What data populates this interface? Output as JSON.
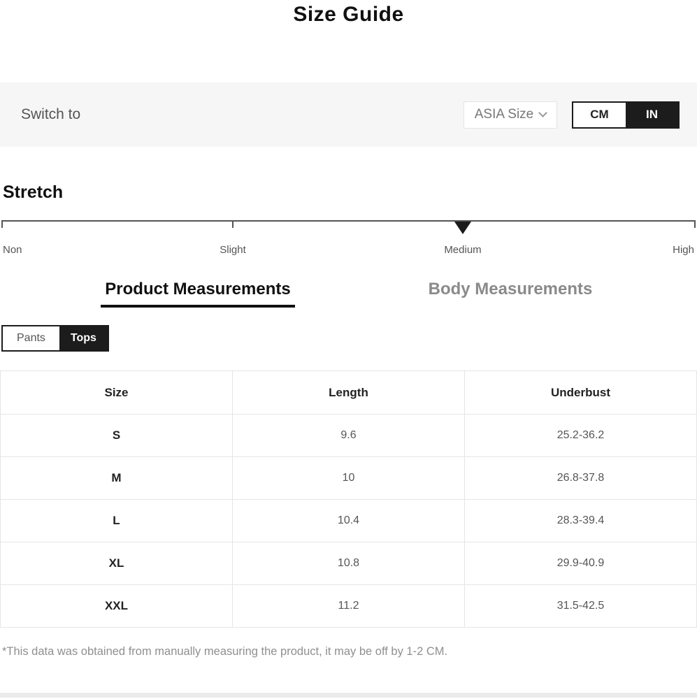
{
  "page": {
    "title": "Size Guide",
    "footnote": "*This data was obtained from manually measuring the product, it may be off by 1-2 CM."
  },
  "switch_bar": {
    "label": "Switch to",
    "region_select": {
      "value": "ASIA Size",
      "chevron_icon": "chevron-down"
    },
    "unit_toggle": {
      "options": [
        {
          "label": "CM",
          "selected": false
        },
        {
          "label": "IN",
          "selected": true
        }
      ]
    }
  },
  "stretch": {
    "heading": "Stretch",
    "levels": [
      "Non",
      "Slight",
      "Medium",
      "High"
    ],
    "selected": "Medium",
    "selected_index": 2,
    "marker_icon": "triangle-down"
  },
  "tabs": [
    {
      "label": "Product Measurements",
      "active": true
    },
    {
      "label": "Body Measurements",
      "active": false
    }
  ],
  "category_toggle": [
    {
      "label": "Pants",
      "selected": false
    },
    {
      "label": "Tops",
      "selected": true
    }
  ],
  "table": {
    "headers": [
      "Size",
      "Length",
      "Underbust"
    ],
    "rows": [
      [
        "S",
        "9.6",
        "25.2-36.2"
      ],
      [
        "M",
        "10",
        "26.8-37.8"
      ],
      [
        "L",
        "10.4",
        "28.3-39.4"
      ],
      [
        "XL",
        "10.8",
        "29.9-40.9"
      ],
      [
        "XXL",
        "11.2",
        "31.5-42.5"
      ]
    ]
  },
  "colors": {
    "accent_dark": "#1c1c1c",
    "band_background": "#f6f6f6",
    "muted_text": "#555555",
    "inactive_tab": "#8a8a8a",
    "table_border": "#e5e5e5"
  }
}
